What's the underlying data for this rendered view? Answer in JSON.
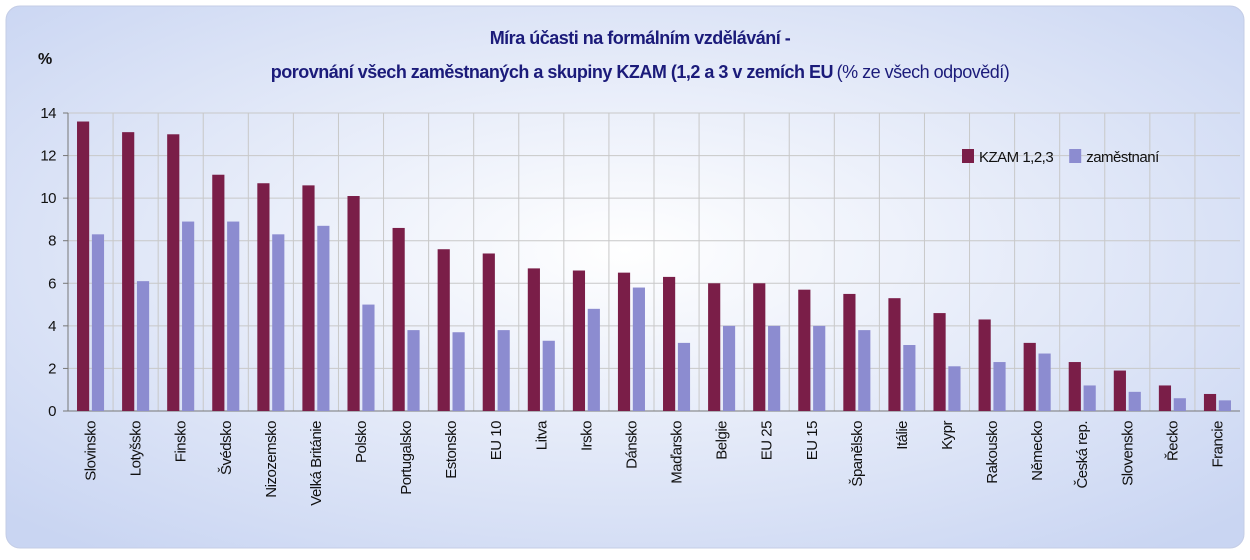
{
  "chart_data": {
    "type": "bar",
    "title": "Míra účasti na formálním vzdělávání -",
    "subtitle": "porovnání všech zaměstnaných a skupiny KZAM (1,2 a 3 v zemích EU",
    "subtitle_note": "(% ze všech odpovědí)",
    "y_label": "%",
    "categories": [
      "Slovinsko",
      "Lotyšsko",
      "Finsko",
      "Švédsko",
      "Nizozemsko",
      "Velká Británie",
      "Polsko",
      "Portugalsko",
      "Estonsko",
      "EU 10",
      "Litva",
      "Irsko",
      "Dánsko",
      "Maďarsko",
      "Belgie",
      "EU 25",
      "EU 15",
      "Španělsko",
      "Itálie",
      "Kypr",
      "Rakousko",
      "Německo",
      "Česká rep.",
      "Slovensko",
      "Řecko",
      "Francie"
    ],
    "series": [
      {
        "name": "KZAM 1,2,3",
        "color": "#7a1e48",
        "values": [
          13.6,
          13.1,
          13.0,
          11.1,
          10.7,
          10.6,
          10.1,
          8.6,
          7.6,
          7.4,
          6.7,
          6.6,
          6.5,
          6.3,
          6.0,
          6.0,
          5.7,
          5.5,
          5.3,
          4.6,
          4.3,
          3.2,
          2.3,
          1.9,
          1.2,
          0.8
        ]
      },
      {
        "name": "zaměstnaní",
        "color": "#8c8cd0",
        "values": [
          8.3,
          6.1,
          8.9,
          8.9,
          8.3,
          8.7,
          5.0,
          3.8,
          3.7,
          3.8,
          3.3,
          4.8,
          5.8,
          3.2,
          4.0,
          4.0,
          4.0,
          3.8,
          3.1,
          2.1,
          2.3,
          2.7,
          1.2,
          0.9,
          0.6,
          0.5
        ]
      }
    ],
    "ylim": [
      0,
      14
    ],
    "yticks": [
      0,
      2,
      4,
      6,
      8,
      10,
      12,
      14
    ],
    "grid": true,
    "legend": "top-right"
  }
}
